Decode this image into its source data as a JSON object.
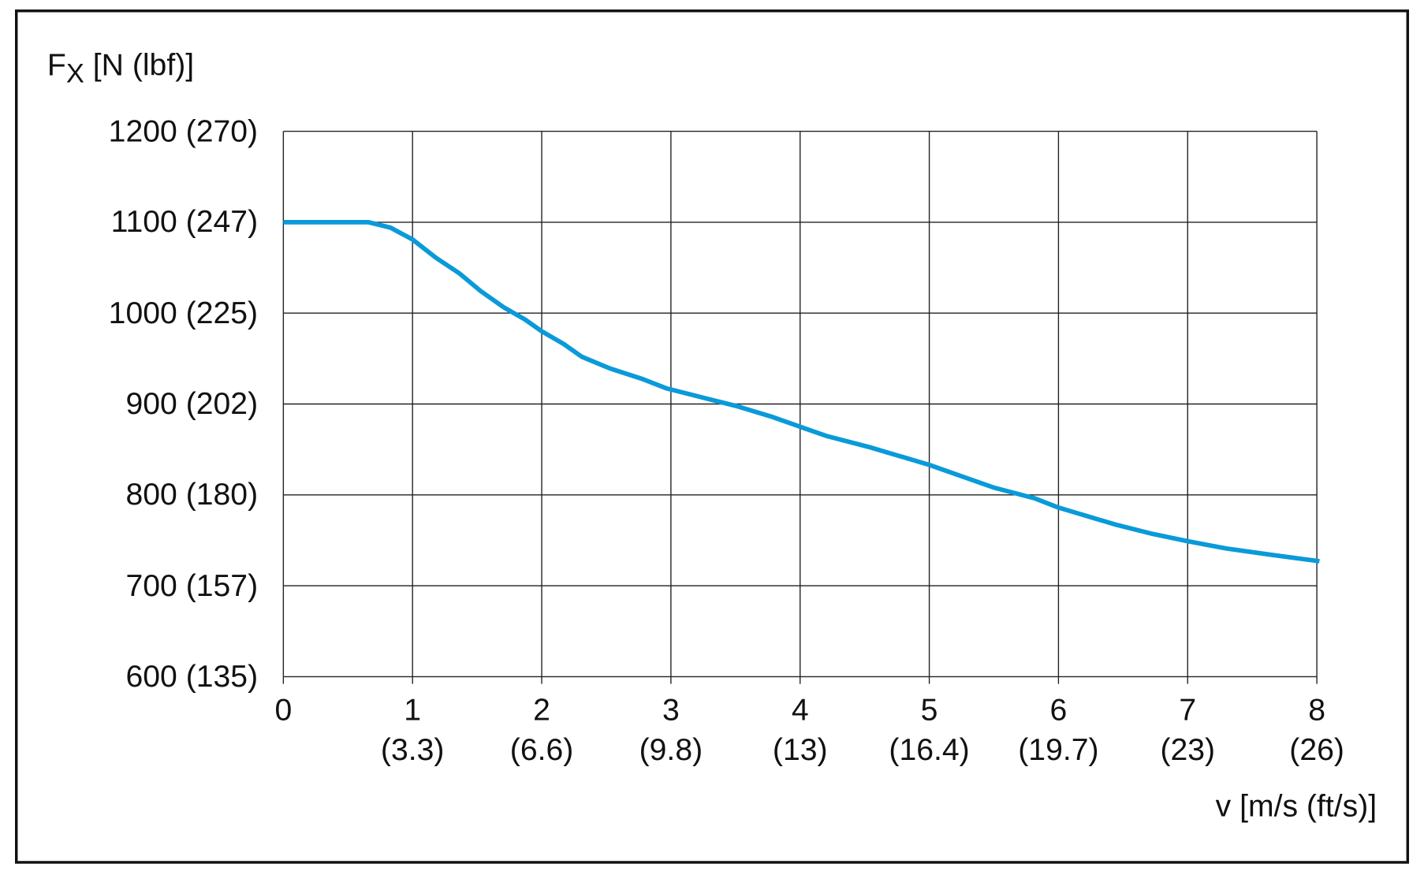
{
  "chart_data": {
    "type": "line",
    "y_label": {
      "symbol": "F",
      "subscript": "X",
      "unit": "[N (lbf)]"
    },
    "x_label": "v [m/s (ft/s)]",
    "x": [
      0,
      0.66,
      0.83,
      1.0,
      1.18,
      1.36,
      1.53,
      1.71,
      1.87,
      2.0,
      2.17,
      2.31,
      2.53,
      2.77,
      2.97,
      3.22,
      3.5,
      3.78,
      4.0,
      4.2,
      4.55,
      5.0,
      5.3,
      5.5,
      5.82,
      6.0,
      6.45,
      6.73,
      7.0,
      7.3,
      7.65,
      8.02
    ],
    "series": [
      {
        "color": "#0a9ad9",
        "values": [
          1100,
          1100,
          1094,
          1081,
          1061,
          1044,
          1024,
          1006,
          993,
          980,
          966,
          952,
          939,
          928,
          917,
          908,
          898,
          886,
          875,
          865,
          852,
          833,
          818,
          808,
          796,
          786,
          767,
          757,
          749,
          741,
          734,
          727
        ]
      }
    ],
    "xlim": [
      0,
      8
    ],
    "xticks": [
      0,
      {
        "value": 1,
        "label": "1\n(3.3)"
      },
      {
        "value": 2,
        "label": "2\n(6.6)"
      },
      {
        "value": 3,
        "label": "3\n(9.8)"
      },
      {
        "value": 4,
        "label": "4\n(13)"
      },
      {
        "value": 5,
        "label": "5\n(16.4)"
      },
      {
        "value": 6,
        "label": "6\n(19.7)"
      },
      {
        "value": 7,
        "label": "7\n(23)"
      },
      {
        "value": 8,
        "label": "8\n(26)"
      }
    ],
    "ylim": [
      600,
      1200
    ],
    "yticks": [
      {
        "value": 600,
        "label": "600 (135)"
      },
      {
        "value": 700,
        "label": "700 (157)"
      },
      {
        "value": 800,
        "label": "800 (180)"
      },
      {
        "value": 900,
        "label": "900 (202)"
      },
      {
        "value": 1000,
        "label": "1000 (225)"
      },
      {
        "value": 1100,
        "label": "1100 (247)"
      },
      {
        "value": 1200,
        "label": "1200 (270)"
      }
    ],
    "grid": true
  }
}
